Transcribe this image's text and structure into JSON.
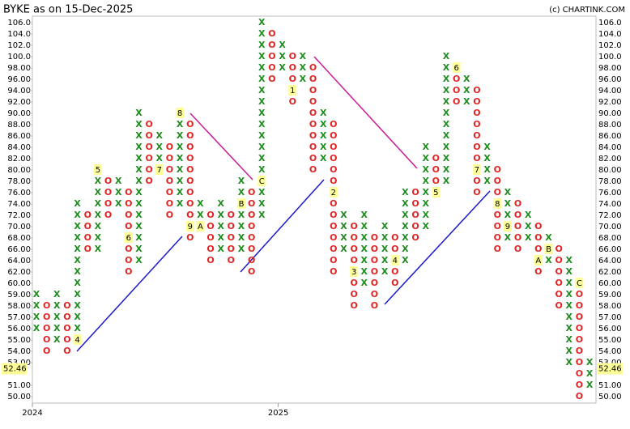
{
  "chart_data": {
    "type": "point-and-figure",
    "title": "BYKE as on 15-Dec-2025",
    "credit": "(c) CHARTINK.COM",
    "x_color": "#1e8c1e",
    "o_color": "#e02424",
    "marker_fill": "#ffff99",
    "box_levels": [
      106,
      104,
      102,
      100,
      98,
      96,
      94,
      92,
      90,
      88,
      86,
      84,
      82,
      80,
      78,
      76,
      74,
      72,
      70,
      68,
      66,
      64,
      62,
      60,
      59,
      58,
      57,
      56,
      55,
      54,
      53,
      52,
      51,
      50
    ],
    "yticks": [
      {
        "value": 106,
        "label": "106.0"
      },
      {
        "value": 104,
        "label": "104.0"
      },
      {
        "value": 102,
        "label": "102.0"
      },
      {
        "value": 100,
        "label": "100.0"
      },
      {
        "value": 98,
        "label": "98.00"
      },
      {
        "value": 96,
        "label": "96.00"
      },
      {
        "value": 94,
        "label": "94.00"
      },
      {
        "value": 92,
        "label": "92.00"
      },
      {
        "value": 90,
        "label": "90.00"
      },
      {
        "value": 88,
        "label": "88.00"
      },
      {
        "value": 86,
        "label": "86.00"
      },
      {
        "value": 84,
        "label": "84.00"
      },
      {
        "value": 82,
        "label": "82.00"
      },
      {
        "value": 80,
        "label": "80.00"
      },
      {
        "value": 78,
        "label": "78.00"
      },
      {
        "value": 76,
        "label": "76.00"
      },
      {
        "value": 74,
        "label": "74.00"
      },
      {
        "value": 72,
        "label": "72.00"
      },
      {
        "value": 70,
        "label": "70.00"
      },
      {
        "value": 68,
        "label": "68.00"
      },
      {
        "value": 66,
        "label": "66.00"
      },
      {
        "value": 64,
        "label": "64.00"
      },
      {
        "value": 62,
        "label": "62.00"
      },
      {
        "value": 60,
        "label": "60.00"
      },
      {
        "value": 59,
        "label": "59.00"
      },
      {
        "value": 58,
        "label": "58.00"
      },
      {
        "value": 57,
        "label": "57.00"
      },
      {
        "value": 56,
        "label": "56.00"
      },
      {
        "value": 55,
        "label": "55.00"
      },
      {
        "value": 54,
        "label": "54.00"
      },
      {
        "value": 53,
        "label": "53.00"
      },
      {
        "value": 51,
        "label": "51.00"
      },
      {
        "value": 50,
        "label": "50.00"
      }
    ],
    "last_price": 52.46,
    "columns": [
      {
        "type": "X",
        "low": 56,
        "high": 59,
        "year": "2024"
      },
      {
        "type": "O",
        "low": 54,
        "high": 58
      },
      {
        "type": "X",
        "low": 55,
        "high": 59
      },
      {
        "type": "O",
        "low": 54,
        "high": 58
      },
      {
        "type": "X",
        "low": 55,
        "high": 74,
        "markers": [
          {
            "value": 55,
            "label": "4"
          }
        ]
      },
      {
        "type": "O",
        "low": 66,
        "high": 72
      },
      {
        "type": "X",
        "low": 66,
        "high": 80,
        "markers": [
          {
            "value": 80,
            "label": "5"
          }
        ]
      },
      {
        "type": "O",
        "low": 72,
        "high": 78
      },
      {
        "type": "X",
        "low": 74,
        "high": 78
      },
      {
        "type": "O",
        "low": 62,
        "high": 76,
        "markers": [
          {
            "value": 68,
            "label": "6"
          }
        ]
      },
      {
        "type": "X",
        "low": 64,
        "high": 90
      },
      {
        "type": "O",
        "low": 78,
        "high": 88
      },
      {
        "type": "X",
        "low": 80,
        "high": 86,
        "markers": [
          {
            "value": 80,
            "label": "7"
          }
        ]
      },
      {
        "type": "O",
        "low": 72,
        "high": 84
      },
      {
        "type": "X",
        "low": 74,
        "high": 90,
        "markers": [
          {
            "value": 90,
            "label": "8"
          }
        ]
      },
      {
        "type": "O",
        "low": 68,
        "high": 88,
        "markers": [
          {
            "value": 70,
            "label": "9"
          }
        ]
      },
      {
        "type": "X",
        "low": 70,
        "high": 74,
        "markers": [
          {
            "value": 70,
            "label": "A"
          }
        ]
      },
      {
        "type": "O",
        "low": 64,
        "high": 72
      },
      {
        "type": "X",
        "low": 66,
        "high": 74
      },
      {
        "type": "O",
        "low": 64,
        "high": 72
      },
      {
        "type": "X",
        "low": 66,
        "high": 78,
        "markers": [
          {
            "value": 74,
            "label": "B"
          }
        ]
      },
      {
        "type": "O",
        "low": 62,
        "high": 76
      },
      {
        "type": "X",
        "low": 72,
        "high": 106,
        "markers": [
          {
            "value": 78,
            "label": "C"
          }
        ]
      },
      {
        "type": "O",
        "low": 96,
        "high": 104
      },
      {
        "type": "X",
        "low": 98,
        "high": 102,
        "year": "2025"
      },
      {
        "type": "O",
        "low": 92,
        "high": 100,
        "markers": [
          {
            "value": 94,
            "label": "1"
          }
        ]
      },
      {
        "type": "X",
        "low": 96,
        "high": 100
      },
      {
        "type": "O",
        "low": 80,
        "high": 98
      },
      {
        "type": "X",
        "low": 82,
        "high": 90
      },
      {
        "type": "O",
        "low": 62,
        "high": 88,
        "markers": [
          {
            "value": 76,
            "label": "2"
          }
        ]
      },
      {
        "type": "X",
        "low": 66,
        "high": 72
      },
      {
        "type": "O",
        "low": 58,
        "high": 70,
        "markers": [
          {
            "value": 62,
            "label": "3"
          }
        ]
      },
      {
        "type": "X",
        "low": 60,
        "high": 72
      },
      {
        "type": "O",
        "low": 58,
        "high": 68
      },
      {
        "type": "X",
        "low": 62,
        "high": 70
      },
      {
        "type": "O",
        "low": 60,
        "high": 68,
        "markers": [
          {
            "value": 64,
            "label": "4"
          }
        ]
      },
      {
        "type": "X",
        "low": 64,
        "high": 76
      },
      {
        "type": "O",
        "low": 68,
        "high": 76
      },
      {
        "type": "X",
        "low": 70,
        "high": 84
      },
      {
        "type": "O",
        "low": 76,
        "high": 82,
        "markers": [
          {
            "value": 76,
            "label": "5"
          }
        ]
      },
      {
        "type": "X",
        "low": 78,
        "high": 100
      },
      {
        "type": "O",
        "low": 92,
        "high": 98,
        "markers": [
          {
            "value": 98,
            "label": "6"
          }
        ]
      },
      {
        "type": "X",
        "low": 92,
        "high": 96
      },
      {
        "type": "O",
        "low": 76,
        "high": 94,
        "markers": [
          {
            "value": 80,
            "label": "7"
          }
        ]
      },
      {
        "type": "X",
        "low": 78,
        "high": 84
      },
      {
        "type": "O",
        "low": 66,
        "high": 80,
        "markers": [
          {
            "value": 74,
            "label": "8"
          }
        ]
      },
      {
        "type": "X",
        "low": 68,
        "high": 76,
        "markers": [
          {
            "value": 70,
            "label": "9"
          }
        ]
      },
      {
        "type": "O",
        "low": 66,
        "high": 74
      },
      {
        "type": "X",
        "low": 68,
        "high": 72
      },
      {
        "type": "O",
        "low": 62,
        "high": 70,
        "markers": [
          {
            "value": 64,
            "label": "A"
          }
        ]
      },
      {
        "type": "X",
        "low": 64,
        "high": 68,
        "markers": [
          {
            "value": 66,
            "label": "B"
          }
        ]
      },
      {
        "type": "O",
        "low": 58,
        "high": 66
      },
      {
        "type": "X",
        "low": 53,
        "high": 64
      },
      {
        "type": "O",
        "low": 50,
        "high": 60,
        "markers": [
          {
            "value": 60,
            "label": "C"
          }
        ]
      },
      {
        "type": "X",
        "low": 51,
        "high": 53
      }
    ]
  }
}
